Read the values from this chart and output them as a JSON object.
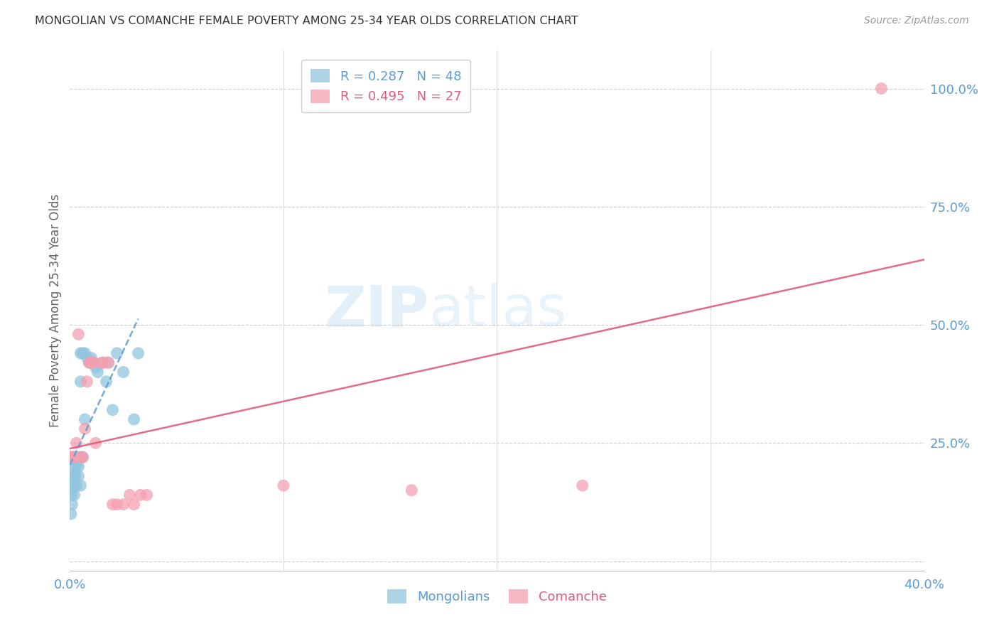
{
  "title": "MONGOLIAN VS COMANCHE FEMALE POVERTY AMONG 25-34 YEAR OLDS CORRELATION CHART",
  "source": "Source: ZipAtlas.com",
  "ylabel": "Female Poverty Among 25-34 Year Olds",
  "xlim": [
    0,
    0.4
  ],
  "ylim": [
    -0.02,
    1.08
  ],
  "mongolian_color": "#92c5de",
  "comanche_color": "#f4a0b0",
  "mongolian_line_color": "#5b9bd5",
  "comanche_line_color": "#e05c78",
  "label_color": "#5b9bd5",
  "grid_color": "#cccccc",
  "background": "#ffffff",
  "mongolian_R": 0.287,
  "mongolian_N": 48,
  "comanche_R": 0.495,
  "comanche_N": 27,
  "mongolian_x": [
    0.0005,
    0.0005,
    0.0005,
    0.0005,
    0.0008,
    0.0008,
    0.001,
    0.001,
    0.001,
    0.001,
    0.0012,
    0.0012,
    0.0015,
    0.0015,
    0.002,
    0.002,
    0.002,
    0.002,
    0.0025,
    0.0025,
    0.003,
    0.003,
    0.003,
    0.004,
    0.004,
    0.004,
    0.005,
    0.005,
    0.005,
    0.005,
    0.006,
    0.006,
    0.007,
    0.007,
    0.008,
    0.009,
    0.01,
    0.011,
    0.012,
    0.013,
    0.015,
    0.017,
    0.018,
    0.02,
    0.022,
    0.025,
    0.03,
    0.032
  ],
  "mongolian_y": [
    0.22,
    0.18,
    0.14,
    0.1,
    0.22,
    0.16,
    0.22,
    0.18,
    0.15,
    0.12,
    0.22,
    0.18,
    0.22,
    0.16,
    0.22,
    0.2,
    0.18,
    0.14,
    0.22,
    0.18,
    0.22,
    0.2,
    0.16,
    0.22,
    0.2,
    0.18,
    0.44,
    0.38,
    0.22,
    0.16,
    0.44,
    0.22,
    0.44,
    0.3,
    0.43,
    0.42,
    0.43,
    0.42,
    0.41,
    0.4,
    0.42,
    0.38,
    0.42,
    0.32,
    0.44,
    0.4,
    0.3,
    0.44
  ],
  "comanche_x": [
    0.0005,
    0.001,
    0.002,
    0.003,
    0.004,
    0.005,
    0.006,
    0.007,
    0.008,
    0.009,
    0.01,
    0.011,
    0.012,
    0.015,
    0.016,
    0.018,
    0.02,
    0.022,
    0.025,
    0.028,
    0.03,
    0.033,
    0.036,
    0.1,
    0.16,
    0.24,
    0.38
  ],
  "comanche_y": [
    0.22,
    0.22,
    0.22,
    0.25,
    0.48,
    0.22,
    0.22,
    0.28,
    0.38,
    0.42,
    0.42,
    0.42,
    0.25,
    0.42,
    0.42,
    0.42,
    0.12,
    0.12,
    0.12,
    0.14,
    0.12,
    0.14,
    0.14,
    0.16,
    0.15,
    0.16,
    1.0
  ],
  "mongolian_line_x": [
    0.0,
    0.022
  ],
  "mongolian_line_y0": 0.155,
  "mongolian_line_y1": 0.36,
  "comanche_line_x": [
    0.0,
    0.4
  ],
  "comanche_line_y0": 0.155,
  "comanche_line_y1": 0.65
}
